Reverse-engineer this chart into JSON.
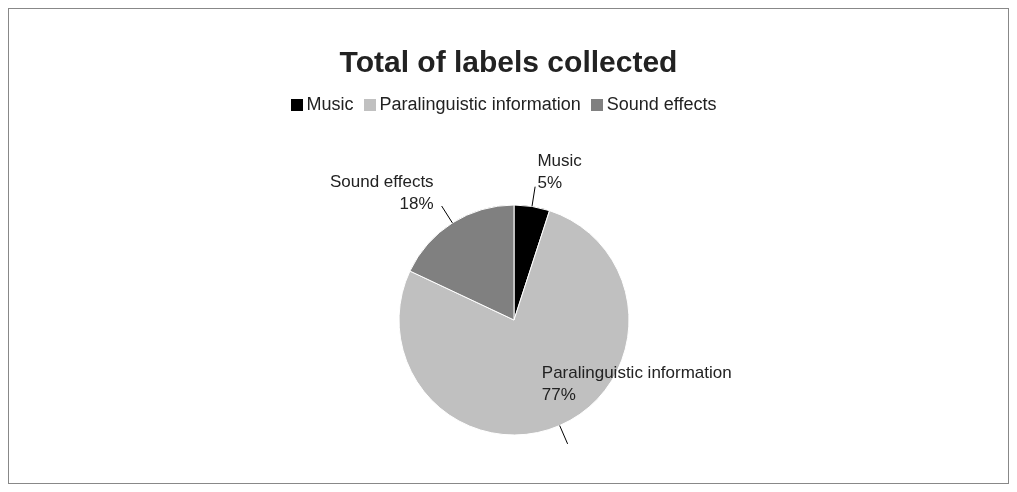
{
  "chart_data": {
    "type": "pie",
    "title": "Total of labels collected",
    "categories": [
      "Music",
      "Paralinguistic information",
      "Sound effects"
    ],
    "values": [
      5,
      77,
      18
    ],
    "colors": [
      "#000000",
      "#c0c0c0",
      "#808080"
    ],
    "value_labels": [
      "5%",
      "77%",
      "18%"
    ],
    "legend": "top"
  }
}
